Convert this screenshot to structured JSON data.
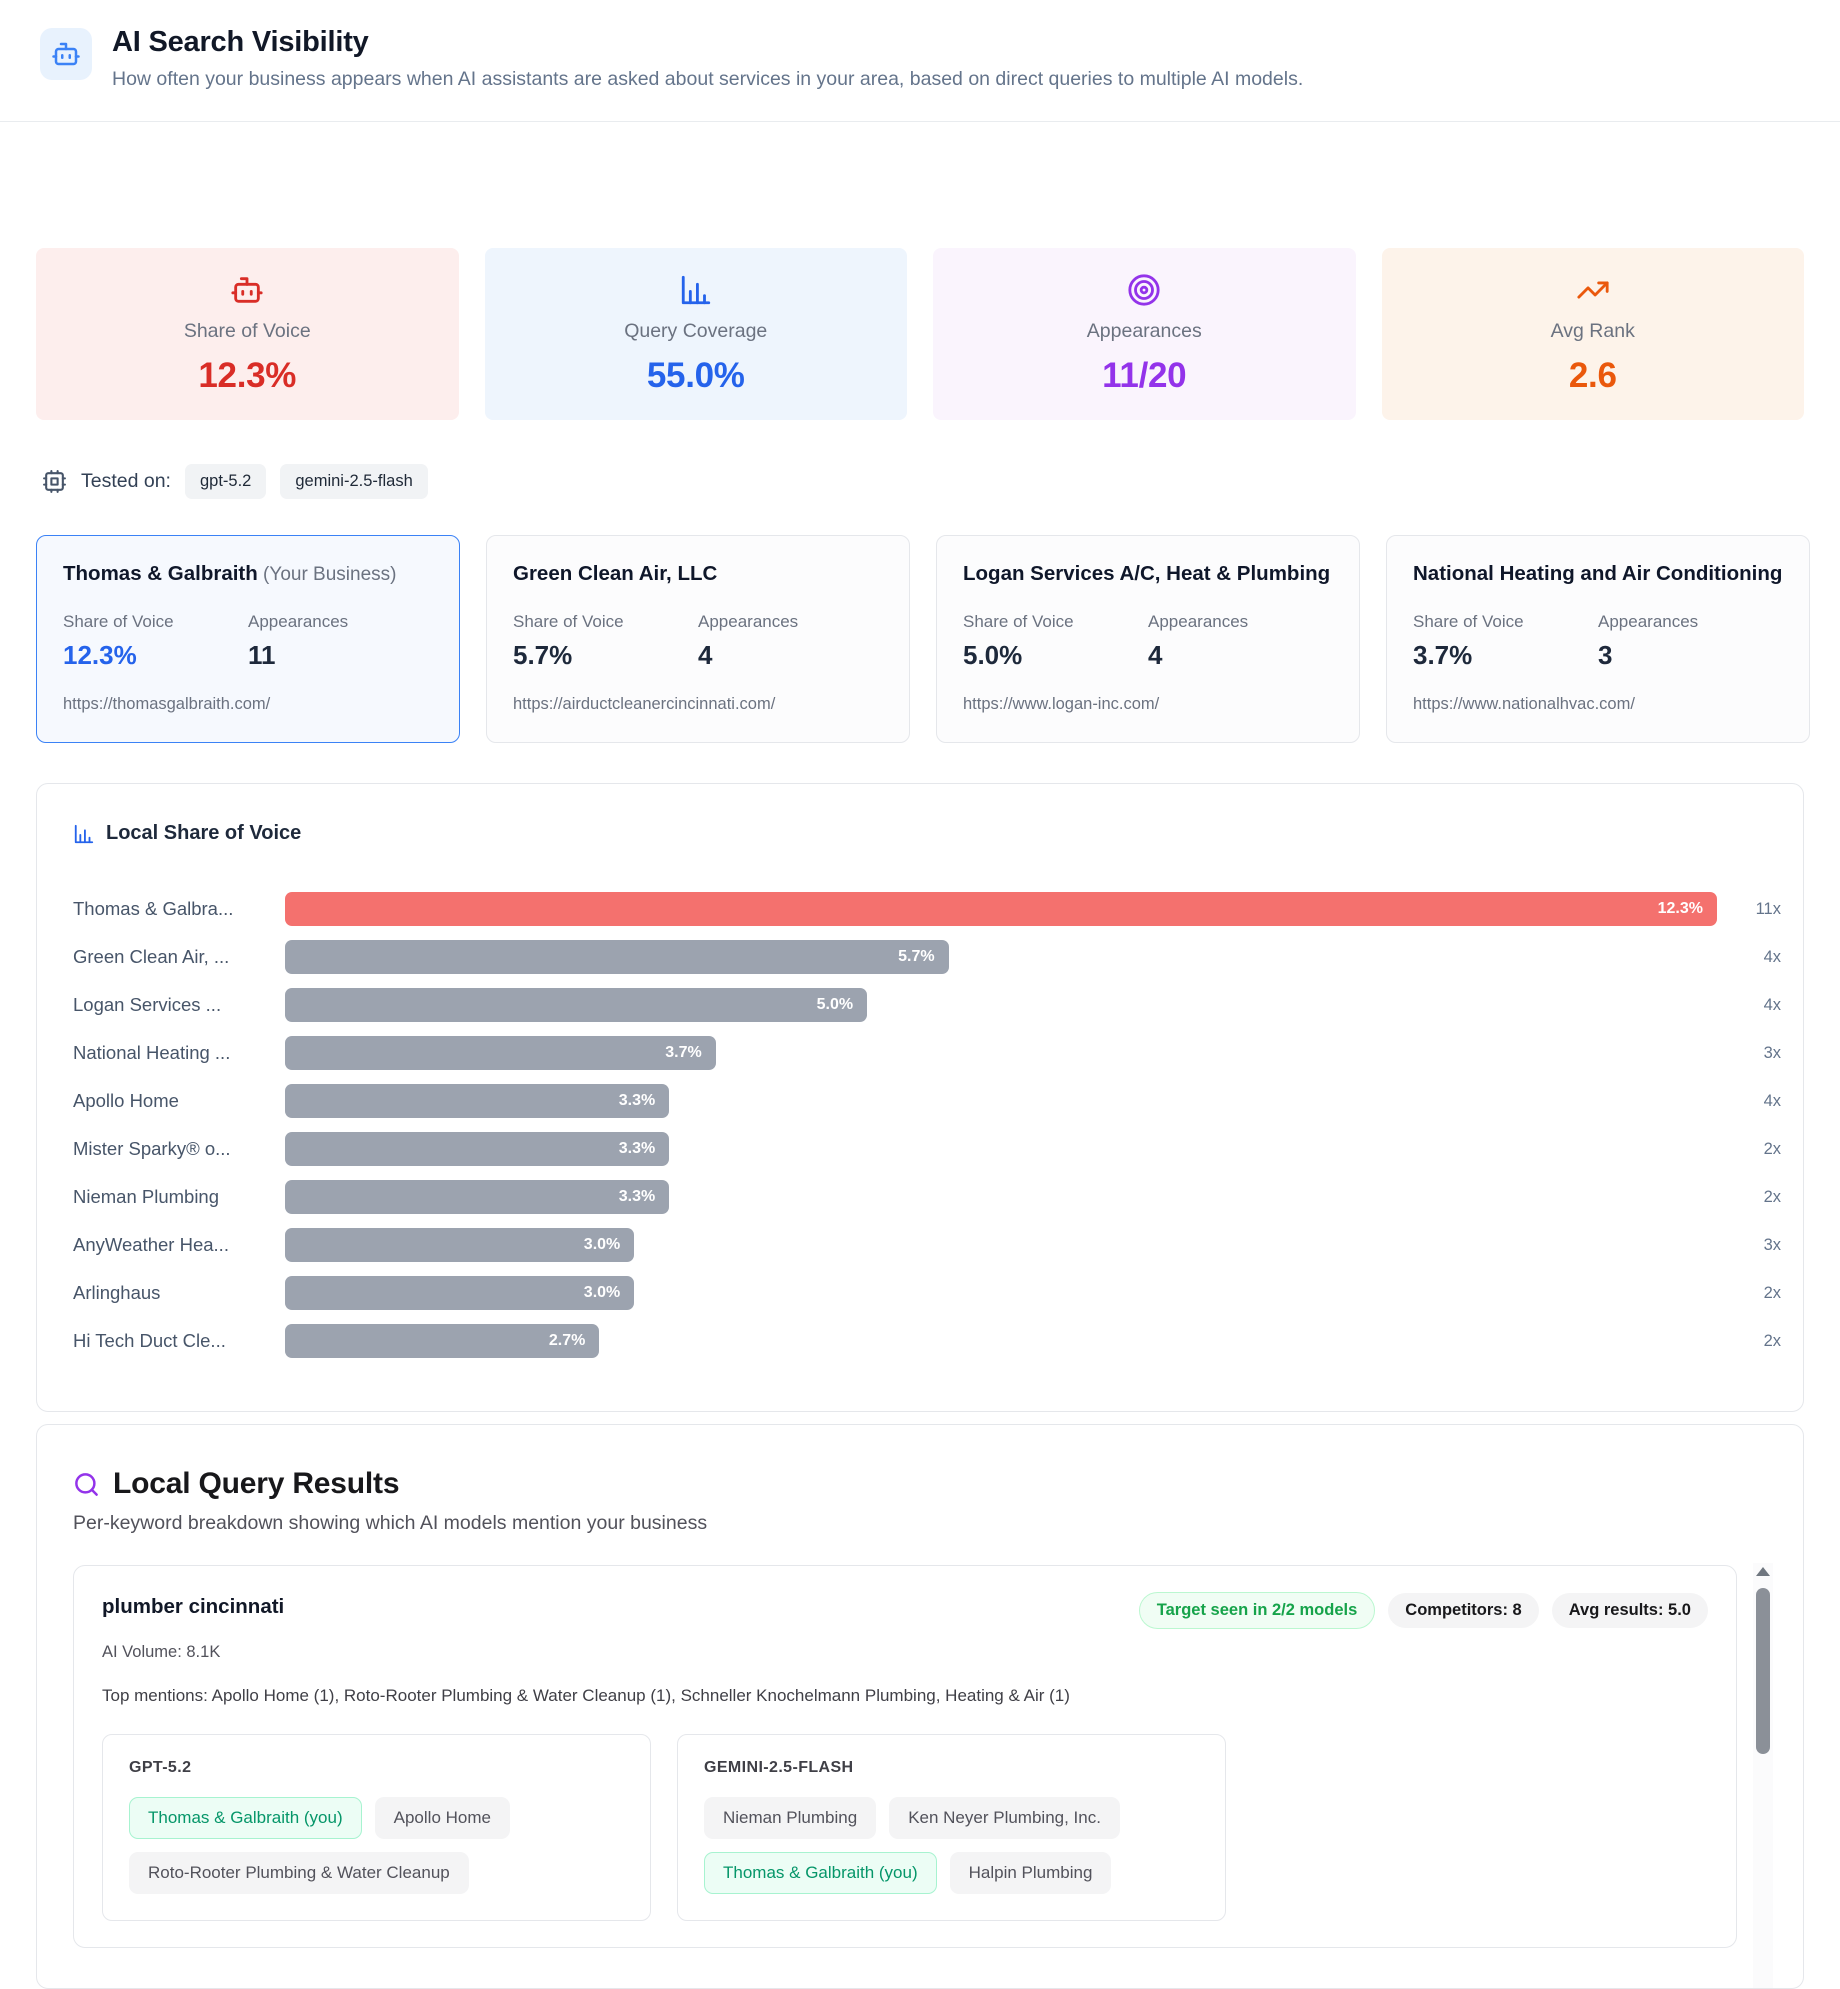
{
  "header": {
    "title": "AI Search Visibility",
    "subtitle": "How often your business appears when AI assistants are asked about services in your area, based on direct queries to multiple AI models."
  },
  "metrics": [
    {
      "label": "Share of Voice",
      "value": "12.3%",
      "icon": "robot-icon",
      "color": "#d92d27",
      "bg": "#fdeeed"
    },
    {
      "label": "Query Coverage",
      "value": "55.0%",
      "icon": "bar-chart-icon",
      "color": "#2563eb",
      "bg": "#eef5fd"
    },
    {
      "label": "Appearances",
      "value": "11/20",
      "icon": "target-icon",
      "color": "#9333ea",
      "bg": "#faf4fd"
    },
    {
      "label": "Avg Rank",
      "value": "2.6",
      "icon": "trending-up-icon",
      "color": "#ea580c",
      "bg": "#fdf3ea"
    }
  ],
  "tested_on": {
    "label": "Tested on:",
    "models": [
      "gpt-5.2",
      "gemini-2.5-flash"
    ]
  },
  "businesses_labels": {
    "sov": "Share of Voice",
    "appearances": "Appearances"
  },
  "businesses": [
    {
      "name": "Thomas & Galbraith",
      "suffix": " (Your Business)",
      "sov": "12.3%",
      "appearances": "11",
      "url": "https://thomasgalbraith.com/"
    },
    {
      "name": "Green Clean Air, LLC",
      "sov": "5.7%",
      "appearances": "4",
      "url": "https://airductcleanercincinnati.com/"
    },
    {
      "name": "Logan Services A/C, Heat & Plumbing",
      "sov": "5.0%",
      "appearances": "4",
      "url": "https://www.logan-inc.com/"
    },
    {
      "name": "National Heating and Air Conditioning",
      "sov": "3.7%",
      "appearances": "3",
      "url": "https://www.nationalhvac.com/"
    }
  ],
  "chart_data": {
    "type": "bar",
    "orientation": "horizontal",
    "title": "Local Share of Voice",
    "xlabel": "",
    "ylabel": "",
    "max_value": 12.3,
    "grid": false,
    "rows": [
      {
        "label": "Thomas & Galbra...",
        "value": 12.3,
        "display": "12.3%",
        "count": "11x",
        "color": "#f4716e"
      },
      {
        "label": "Green Clean Air, ...",
        "value": 5.7,
        "display": "5.7%",
        "count": "4x",
        "color": "#9ca3af"
      },
      {
        "label": "Logan Services ...",
        "value": 5.0,
        "display": "5.0%",
        "count": "4x",
        "color": "#9ca3af"
      },
      {
        "label": "National Heating ...",
        "value": 3.7,
        "display": "3.7%",
        "count": "3x",
        "color": "#9ca3af"
      },
      {
        "label": "Apollo Home",
        "value": 3.3,
        "display": "3.3%",
        "count": "4x",
        "color": "#9ca3af"
      },
      {
        "label": "Mister Sparky® o...",
        "value": 3.3,
        "display": "3.3%",
        "count": "2x",
        "color": "#9ca3af"
      },
      {
        "label": "Nieman Plumbing",
        "value": 3.3,
        "display": "3.3%",
        "count": "2x",
        "color": "#9ca3af"
      },
      {
        "label": "AnyWeather Hea...",
        "value": 3.0,
        "display": "3.0%",
        "count": "3x",
        "color": "#9ca3af"
      },
      {
        "label": "Arlinghaus",
        "value": 3.0,
        "display": "3.0%",
        "count": "2x",
        "color": "#9ca3af"
      },
      {
        "label": "Hi Tech Duct Cle...",
        "value": 2.7,
        "display": "2.7%",
        "count": "2x",
        "color": "#9ca3af"
      }
    ]
  },
  "query_results": {
    "title": "Local Query Results",
    "subtitle": "Per-keyword breakdown showing which AI models mention your business",
    "query": {
      "keyword": "plumber cincinnati",
      "badges": [
        {
          "label": "Target seen in 2/2 models",
          "type": "success"
        },
        {
          "label": "Competitors: 8",
          "type": "neutral"
        },
        {
          "label": "Avg results: 5.0",
          "type": "neutral"
        }
      ],
      "ai_volume": "AI Volume: 8.1K",
      "top_mentions": "Top mentions: Apollo Home (1), Roto-Rooter Plumbing & Water Cleanup (1), Schneller Knochelmann Plumbing, Heating & Air (1)",
      "models": [
        {
          "name": "GPT-5.2",
          "chips": [
            {
              "label": "Thomas & Galbraith (you)",
              "you": true
            },
            {
              "label": "Apollo Home",
              "you": false
            },
            {
              "label": "Roto-Rooter Plumbing & Water Cleanup",
              "you": false
            }
          ]
        },
        {
          "name": "GEMINI-2.5-FLASH",
          "chips": [
            {
              "label": "Nieman Plumbing",
              "you": false
            },
            {
              "label": "Ken Neyer Plumbing, Inc.",
              "you": false
            },
            {
              "label": "Thomas & Galbraith (you)",
              "you": true
            },
            {
              "label": "Halpin Plumbing",
              "you": false
            }
          ]
        }
      ]
    }
  }
}
